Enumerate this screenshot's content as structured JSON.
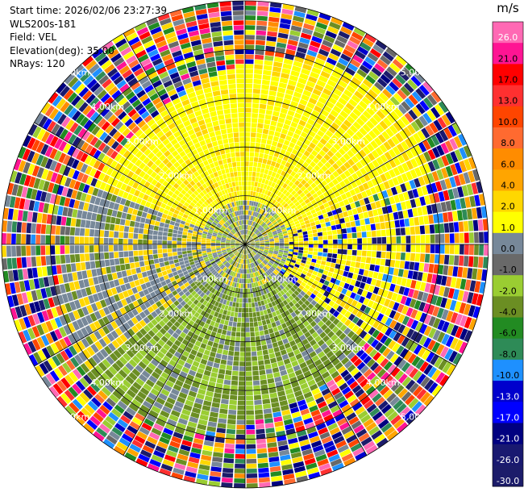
{
  "header": {
    "start_time": "Start time: 2026/02/06 23:27:39",
    "instrument": "WLS200s-181",
    "field": "Field: VEL",
    "elevation": "Elevation(deg): 35.00",
    "nrays": "NRays: 120"
  },
  "chart_data": {
    "type": "heatmap",
    "projection": "polar-ppi",
    "field": "VEL",
    "nrays": 120,
    "elevation_deg": 35.0,
    "range_rings_km": [
      1.0,
      2.0,
      3.0,
      4.0,
      5.0
    ],
    "ring_labels": [
      "1.00km",
      "2.00km",
      "3.00km",
      "4.00km",
      "5.00km"
    ],
    "spokes_deg": [
      0,
      30,
      60,
      90,
      120,
      150,
      180,
      210,
      240,
      270,
      300,
      330
    ],
    "max_range_km": 5.0,
    "colorbar": {
      "unit": "m/s",
      "ticks": [
        "26.0",
        "21.0",
        "17.0",
        "13.0",
        "10.0",
        "8.0",
        "6.0",
        "4.0",
        "2.0",
        "1.0",
        "0.0",
        "-1.0",
        "-2.0",
        "-4.0",
        "-6.0",
        "-8.0",
        "-10.0",
        "-13.0",
        "-17.0",
        "-21.0",
        "-26.0",
        "-30.0"
      ],
      "colors": [
        "#ff69b4",
        "#ff1493",
        "#ff0000",
        "#ff3030",
        "#ff4500",
        "#ff6a30",
        "#ff8c00",
        "#ffa500",
        "#ffd700",
        "#ffff00",
        "#778899",
        "#696969",
        "#9acd32",
        "#6b8e23",
        "#228b22",
        "#2e8b57",
        "#1e90ff",
        "#0000cd",
        "#0000ff",
        "#000080",
        "#191970",
        "#1c1c6a"
      ]
    },
    "velocity_zones": [
      {
        "region": "north near field, 1.5-4 km",
        "dominant_m_s": "2.0 to 4.0"
      },
      {
        "region": "east, 2-4 km",
        "dominant_m_s": "1.0 to 6.0"
      },
      {
        "region": "south, 1-4 km",
        "dominant_m_s": "-1.0 to -4.0"
      },
      {
        "region": "center, <1 km",
        "dominant_m_s": "-2.0 to 2.0"
      },
      {
        "region": "outer ring, 3.5-5 km",
        "dominant_m_s": "-30.0 to 26.0 (noise)"
      }
    ]
  }
}
